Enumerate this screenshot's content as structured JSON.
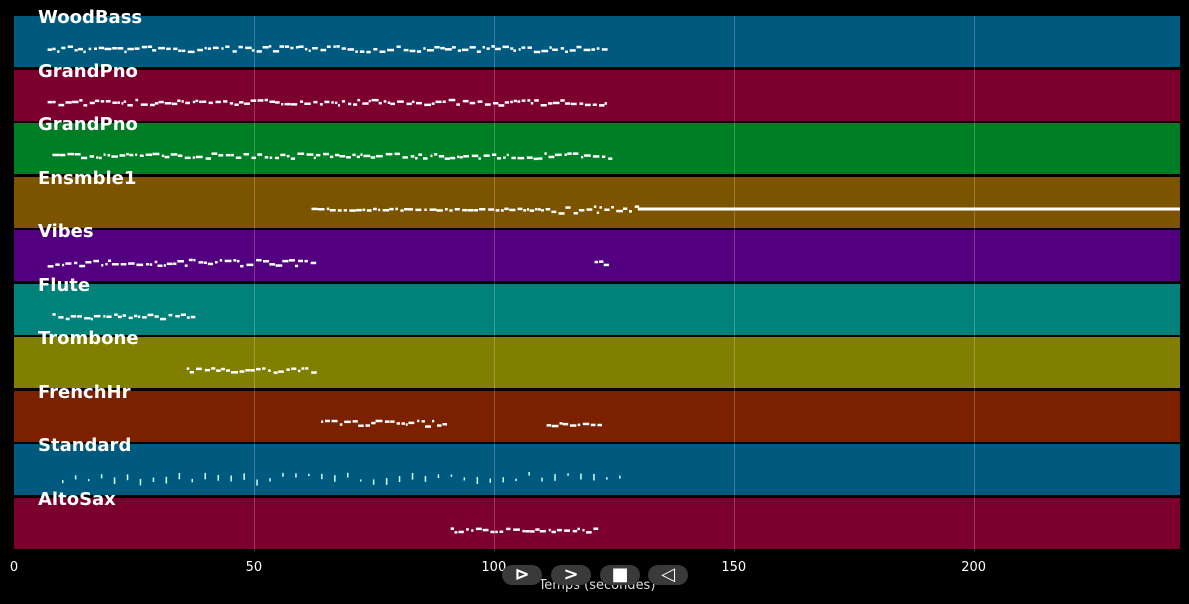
{
  "tracks": [
    {
      "name": "WoodBass",
      "color": "#005a80"
    },
    {
      "name": "GrandPno",
      "color": "#7c002d"
    },
    {
      "name": "GrandPno",
      "color": "#007e25"
    },
    {
      "name": "Ensmble1",
      "color": "#7c5400"
    },
    {
      "name": "Vibes",
      "color": "#52007f"
    },
    {
      "name": "Flute",
      "color": "#00827a"
    },
    {
      "name": "Trombone",
      "color": "#807f00"
    },
    {
      "name": "FrenchHr",
      "color": "#7c2100"
    },
    {
      "name": "Standard",
      "color": "#005a80"
    },
    {
      "name": "AltoSax",
      "color": "#7c002d"
    }
  ],
  "x_axis": {
    "label": "Temps (secondes)",
    "ticks": [
      "0",
      "50",
      "100",
      "150",
      "200"
    ],
    "range": [
      0,
      243
    ]
  },
  "controls": [
    {
      "name": "play-button",
      "glyph": "⊳"
    },
    {
      "name": "forward-button",
      "glyph": ">"
    },
    {
      "name": "stop-button",
      "glyph": "■"
    },
    {
      "name": "rewind-button",
      "glyph": "◁"
    }
  ]
}
